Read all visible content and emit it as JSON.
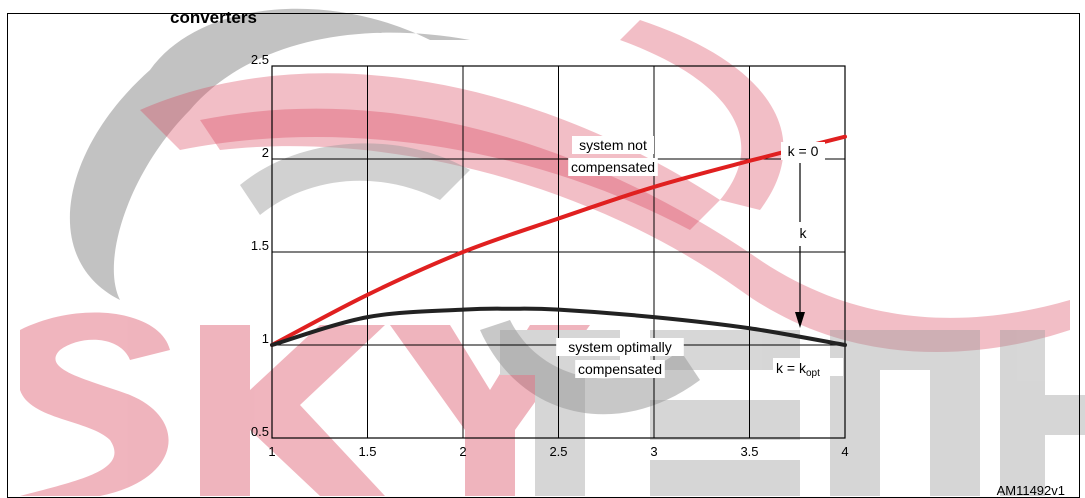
{
  "figure": {
    "caption_fragment": "converters",
    "figure_id": "AM11492v1",
    "watermark_text": "SKYTECH ELECTRONIC"
  },
  "chart_data": {
    "type": "line",
    "xlim": [
      1,
      4
    ],
    "ylim": [
      0.5,
      2.5
    ],
    "x_ticks": [
      "1",
      "1.5",
      "2",
      "2.5",
      "3",
      "3.5",
      "4"
    ],
    "y_ticks": [
      "0.5",
      "1",
      "1.5",
      "2",
      "2.5"
    ],
    "grid": true,
    "series": [
      {
        "color": "#e02020",
        "x": [
          1,
          1.5,
          2,
          2.5,
          3,
          3.5,
          4
        ],
        "y": [
          1.0,
          1.27,
          1.5,
          1.68,
          1.85,
          1.99,
          2.12
        ]
      },
      {
        "color": "#222222",
        "x": [
          1,
          1.5,
          2,
          2.25,
          2.5,
          3,
          3.5,
          4
        ],
        "y": [
          1.0,
          1.15,
          1.19,
          1.195,
          1.19,
          1.15,
          1.09,
          1.0
        ]
      }
    ],
    "annotations": {
      "upper_label_line1": "system not",
      "upper_label_line2": "compensated",
      "lower_label_line1": "system optimally",
      "lower_label_line2": "compensated",
      "k0_label": "k = 0",
      "k_label": "k",
      "kopt_label_main": "k = k",
      "kopt_label_sub": "opt"
    }
  }
}
